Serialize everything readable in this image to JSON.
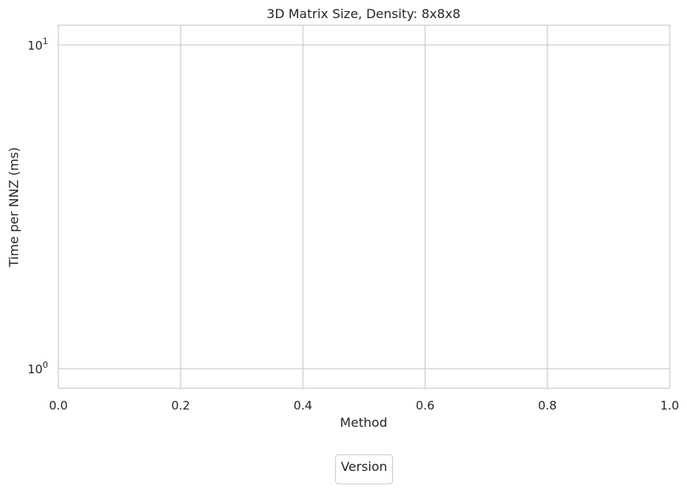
{
  "chart_data": {
    "type": "line",
    "title": "3D Matrix Size, Density: 8x8x8",
    "xlabel": "Method",
    "ylabel": "Time per NNZ (ms)",
    "xlim": [
      0.0,
      1.0
    ],
    "ylim": [
      0.87,
      11.5
    ],
    "yscale": "log",
    "x_ticks": [
      "0.0",
      "0.2",
      "0.4",
      "0.6",
      "0.8",
      "1.0"
    ],
    "x_tick_values": [
      0.0,
      0.2,
      0.4,
      0.6,
      0.8,
      1.0
    ],
    "y_ticks": [
      {
        "value": 1,
        "base": "10",
        "exponent": "0"
      },
      {
        "value": 10,
        "base": "10",
        "exponent": "1"
      }
    ],
    "grid": true,
    "legend": {
      "title": "Version",
      "placement": "below"
    },
    "series": []
  }
}
